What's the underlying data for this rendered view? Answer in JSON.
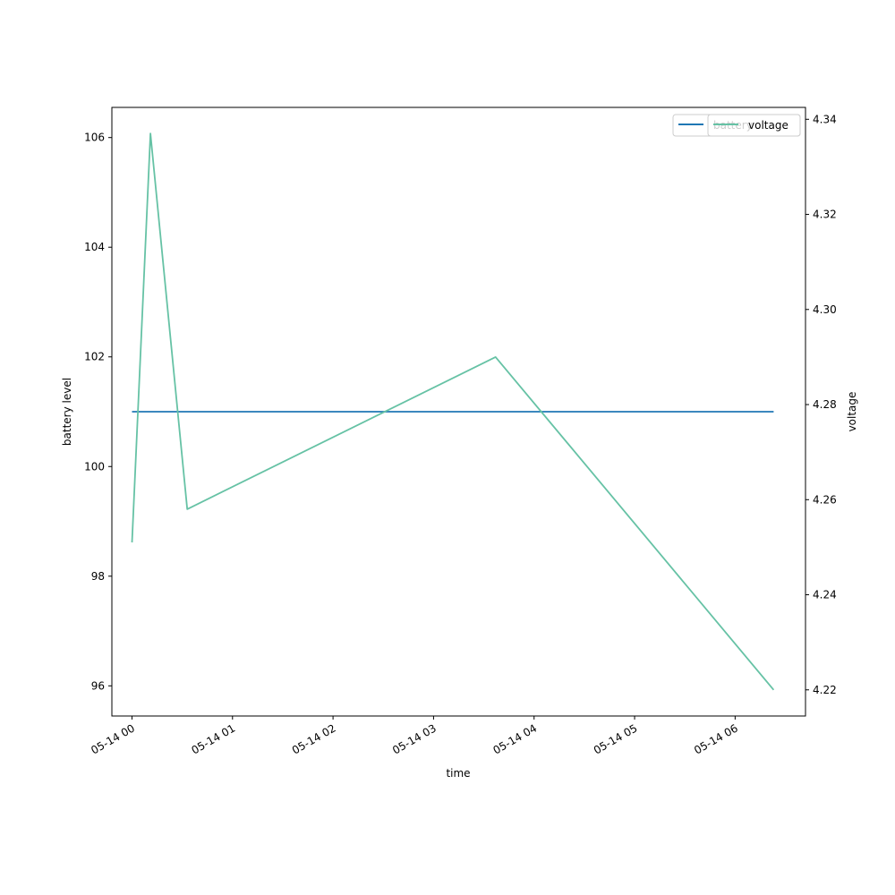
{
  "chart_data": {
    "type": "line",
    "xlabel": "time",
    "ylabel_left": "battery level",
    "ylabel_right": "voltage",
    "x_tick_labels": [
      "05-14 00",
      "05-14 01",
      "05-14 02",
      "05-14 03",
      "05-14 04",
      "05-14 05",
      "05-14 06"
    ],
    "y_left_ticks": [
      96,
      98,
      100,
      102,
      104,
      106
    ],
    "y_left_lim": [
      95.45,
      106.55
    ],
    "y_right_ticks": [
      4.22,
      4.24,
      4.26,
      4.28,
      4.3,
      4.32,
      4.34
    ],
    "y_right_lim": [
      4.2145,
      4.3425
    ],
    "x_lim": [
      "2019-05-13 23:48",
      "2019-05-14 06:42"
    ],
    "grid": false,
    "legend_placement": "top-right",
    "series": [
      {
        "name": "battery",
        "axis": "left",
        "color": "#1f77b4",
        "points": [
          [
            "2019-05-14 00:00",
            101
          ],
          [
            "2019-05-14 06:23",
            101
          ]
        ]
      },
      {
        "name": "voltage",
        "axis": "right",
        "color": "#66c2a5",
        "points": [
          [
            "2019-05-14 00:00",
            4.251
          ],
          [
            "2019-05-14 00:11",
            4.337
          ],
          [
            "2019-05-14 00:33",
            4.258
          ],
          [
            "2019-05-14 03:37",
            4.29
          ],
          [
            "2019-05-14 06:23",
            4.22
          ]
        ]
      }
    ]
  }
}
